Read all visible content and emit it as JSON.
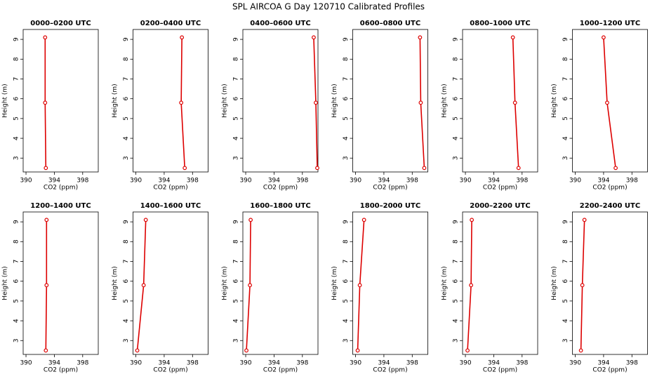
{
  "title": "SPL AIRCOA G  Day 120710  Calibrated Profiles",
  "chart_data": [
    {
      "type": "line",
      "title": "0000–0200 UTC",
      "xlabel": "CO2 (ppm)",
      "ylabel": "Height (m)",
      "x": [
        392.8,
        392.7,
        392.7
      ],
      "values": [
        2.5,
        5.8,
        9.1
      ],
      "color": "#dd0000",
      "xlim": [
        389.6,
        400.2
      ],
      "ylim": [
        2.3,
        9.5
      ],
      "xticks": [
        390,
        394,
        398
      ],
      "yticks": [
        3,
        4,
        5,
        6,
        7,
        8,
        9
      ]
    },
    {
      "type": "line",
      "title": "0200–0400 UTC",
      "xlabel": "CO2 (ppm)",
      "ylabel": "Height (m)",
      "x": [
        396.9,
        396.4,
        396.5
      ],
      "values": [
        2.5,
        5.8,
        9.1
      ],
      "color": "#dd0000",
      "xlim": [
        389.6,
        400.2
      ],
      "ylim": [
        2.3,
        9.5
      ],
      "xticks": [
        390,
        394,
        398
      ],
      "yticks": [
        3,
        4,
        5,
        6,
        7,
        8,
        9
      ]
    },
    {
      "type": "line",
      "title": "0400–0600 UTC",
      "xlabel": "CO2 (ppm)",
      "ylabel": "Height (m)",
      "x": [
        400.1,
        399.9,
        399.6
      ],
      "values": [
        2.5,
        5.8,
        9.1
      ],
      "color": "#dd0000",
      "xlim": [
        389.6,
        400.2
      ],
      "ylim": [
        2.3,
        9.5
      ],
      "xticks": [
        390,
        394,
        398
      ],
      "yticks": [
        3,
        4,
        5,
        6,
        7,
        8,
        9
      ]
    },
    {
      "type": "line",
      "title": "0600–0800 UTC",
      "xlabel": "CO2 (ppm)",
      "ylabel": "Height (m)",
      "x": [
        399.7,
        399.2,
        399.1
      ],
      "values": [
        2.5,
        5.8,
        9.1
      ],
      "color": "#dd0000",
      "xlim": [
        389.6,
        400.2
      ],
      "ylim": [
        2.3,
        9.5
      ],
      "xticks": [
        390,
        394,
        398
      ],
      "yticks": [
        3,
        4,
        5,
        6,
        7,
        8,
        9
      ]
    },
    {
      "type": "line",
      "title": "0800–1000 UTC",
      "xlabel": "CO2 (ppm)",
      "ylabel": "Height (m)",
      "x": [
        397.5,
        397.0,
        396.7
      ],
      "values": [
        2.5,
        5.8,
        9.1
      ],
      "color": "#dd0000",
      "xlim": [
        389.6,
        400.2
      ],
      "ylim": [
        2.3,
        9.5
      ],
      "xticks": [
        390,
        394,
        398
      ],
      "yticks": [
        3,
        4,
        5,
        6,
        7,
        8,
        9
      ]
    },
    {
      "type": "line",
      "title": "1000–1200 UTC",
      "xlabel": "CO2 (ppm)",
      "ylabel": "Height (m)",
      "x": [
        395.7,
        394.5,
        394.0
      ],
      "values": [
        2.5,
        5.8,
        9.1
      ],
      "color": "#dd0000",
      "xlim": [
        389.6,
        400.2
      ],
      "ylim": [
        2.3,
        9.5
      ],
      "xticks": [
        390,
        394,
        398
      ],
      "yticks": [
        3,
        4,
        5,
        6,
        7,
        8,
        9
      ]
    },
    {
      "type": "line",
      "title": "1200–1400 UTC",
      "xlabel": "CO2 (ppm)",
      "ylabel": "Height (m)",
      "x": [
        392.8,
        392.9,
        392.9
      ],
      "values": [
        2.5,
        5.8,
        9.1
      ],
      "color": "#dd0000",
      "xlim": [
        389.6,
        400.2
      ],
      "ylim": [
        2.3,
        9.5
      ],
      "xticks": [
        390,
        394,
        398
      ],
      "yticks": [
        3,
        4,
        5,
        6,
        7,
        8,
        9
      ]
    },
    {
      "type": "line",
      "title": "1400–1600 UTC",
      "xlabel": "CO2 (ppm)",
      "ylabel": "Height (m)",
      "x": [
        390.2,
        391.1,
        391.4
      ],
      "values": [
        2.5,
        5.8,
        9.1
      ],
      "color": "#dd0000",
      "xlim": [
        389.6,
        400.2
      ],
      "ylim": [
        2.3,
        9.5
      ],
      "xticks": [
        390,
        394,
        398
      ],
      "yticks": [
        3,
        4,
        5,
        6,
        7,
        8,
        9
      ]
    },
    {
      "type": "line",
      "title": "1600–1800 UTC",
      "xlabel": "CO2 (ppm)",
      "ylabel": "Height (m)",
      "x": [
        390.1,
        390.6,
        390.7
      ],
      "values": [
        2.5,
        5.8,
        9.1
      ],
      "color": "#dd0000",
      "xlim": [
        389.6,
        400.2
      ],
      "ylim": [
        2.3,
        9.5
      ],
      "xticks": [
        390,
        394,
        398
      ],
      "yticks": [
        3,
        4,
        5,
        6,
        7,
        8,
        9
      ]
    },
    {
      "type": "line",
      "title": "1800–2000 UTC",
      "xlabel": "CO2 (ppm)",
      "ylabel": "Height (m)",
      "x": [
        390.3,
        390.6,
        391.2
      ],
      "values": [
        2.5,
        5.8,
        9.1
      ],
      "color": "#dd0000",
      "xlim": [
        389.6,
        400.2
      ],
      "ylim": [
        2.3,
        9.5
      ],
      "xticks": [
        390,
        394,
        398
      ],
      "yticks": [
        3,
        4,
        5,
        6,
        7,
        8,
        9
      ]
    },
    {
      "type": "line",
      "title": "2000–2200 UTC",
      "xlabel": "CO2 (ppm)",
      "ylabel": "Height (m)",
      "x": [
        390.3,
        390.8,
        390.9
      ],
      "values": [
        2.5,
        5.8,
        9.1
      ],
      "color": "#dd0000",
      "xlim": [
        389.6,
        400.2
      ],
      "ylim": [
        2.3,
        9.5
      ],
      "xticks": [
        390,
        394,
        398
      ],
      "yticks": [
        3,
        4,
        5,
        6,
        7,
        8,
        9
      ]
    },
    {
      "type": "line",
      "title": "2200–2400 UTC",
      "xlabel": "CO2 (ppm)",
      "ylabel": "Height (m)",
      "x": [
        390.8,
        391.0,
        391.3
      ],
      "values": [
        2.5,
        5.8,
        9.1
      ],
      "color": "#dd0000",
      "xlim": [
        389.6,
        400.2
      ],
      "ylim": [
        2.3,
        9.5
      ],
      "xticks": [
        390,
        394,
        398
      ],
      "yticks": [
        3,
        4,
        5,
        6,
        7,
        8,
        9
      ]
    }
  ]
}
